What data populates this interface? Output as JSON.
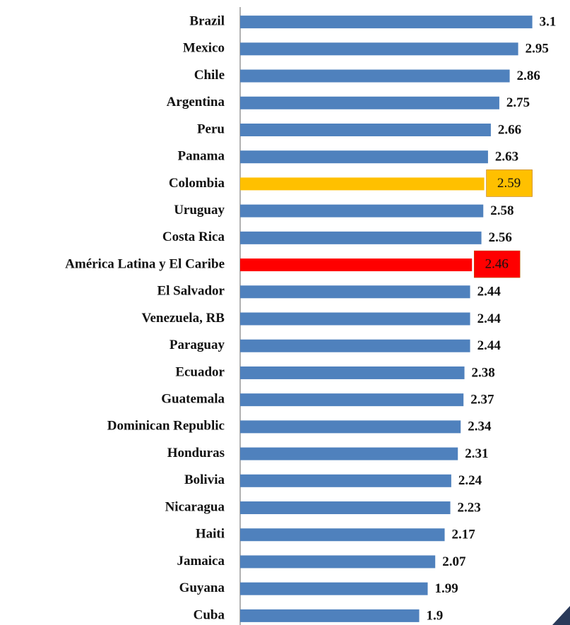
{
  "chart_data": {
    "type": "barh",
    "categories": [
      "Brazil",
      "Mexico",
      "Chile",
      "Argentina",
      "Peru",
      "Panama",
      "Colombia",
      "Uruguay",
      "Costa Rica",
      "América Latina y El Caribe",
      "El Salvador",
      "Venezuela, RB",
      "Paraguay",
      "Ecuador",
      "Guatemala",
      "Dominican Republic",
      "Honduras",
      "Bolivia",
      "Nicaragua",
      "Haiti",
      "Jamaica",
      "Guyana",
      "Cuba"
    ],
    "values": [
      3.1,
      2.95,
      2.86,
      2.75,
      2.66,
      2.63,
      2.59,
      2.58,
      2.56,
      2.46,
      2.44,
      2.44,
      2.44,
      2.38,
      2.37,
      2.34,
      2.31,
      2.24,
      2.23,
      2.17,
      2.07,
      1.99,
      1.9
    ],
    "color": "#4f81bd",
    "colors": [
      "#4f81bd",
      "#4f81bd",
      "#4f81bd",
      "#4f81bd",
      "#4f81bd",
      "#4f81bd",
      "#ffc000",
      "#4f81bd",
      "#4f81bd",
      "#ff0000",
      "#4f81bd",
      "#4f81bd",
      "#4f81bd",
      "#4f81bd",
      "#4f81bd",
      "#4f81bd",
      "#4f81bd",
      "#4f81bd",
      "#4f81bd",
      "#4f81bd",
      "#4f81bd",
      "#4f81bd",
      "#4f81bd"
    ],
    "xlim": [
      0,
      3.5
    ]
  }
}
